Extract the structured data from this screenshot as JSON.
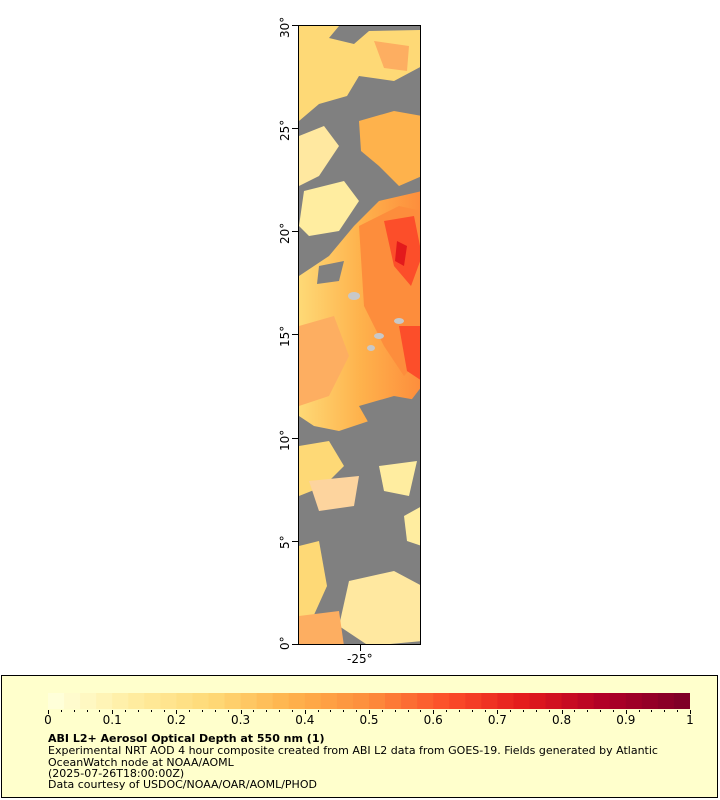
{
  "map": {
    "lat_ticks": [
      "0°",
      "5°",
      "10°",
      "15°",
      "20°",
      "25°",
      "30°"
    ],
    "lon_label": "-25°",
    "colors": {
      "no_data": "#808080",
      "land_grey": "#c8c8c8",
      "scale": [
        "#ffffd9",
        "#ffeda0",
        "#fed976",
        "#feb24c",
        "#fd8d3c",
        "#fc4e2a",
        "#e31a1c",
        "#b10026",
        "#800026"
      ]
    }
  },
  "legend": {
    "ticks": [
      "0",
      "0.1",
      "0.2",
      "0.3",
      "0.4",
      "0.5",
      "0.6",
      "0.7",
      "0.8",
      "0.9",
      "1"
    ],
    "title": "ABI L2+ Aerosol Optical Depth at 550 nm (1)",
    "description_line1": "Experimental NRT AOD 4 hour composite created from ABI L2 data from GOES-19. Fields generated by Atlantic",
    "description_line2": "OceanWatch node at NOAA/AOML",
    "timestamp": "(2025-07-26T18:00:00Z)",
    "credit": "Data courtesy of USDOC/NOAA/OAR/AOML/PHOD"
  }
}
